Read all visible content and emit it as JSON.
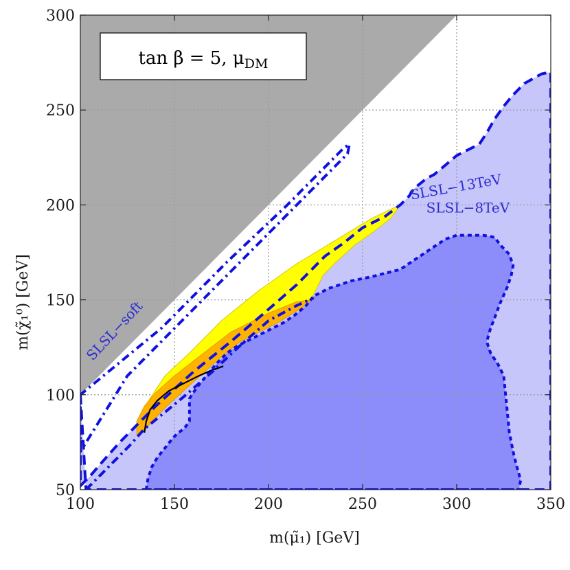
{
  "chart_data": {
    "type": "area",
    "title": "tan β = 5,  μ_DM",
    "title_parts": {
      "main": "tan β = 5,  μ",
      "sub": "DM"
    },
    "xlabel": "m(μ̃₁)  [GeV]",
    "ylabel": "m(χ̃₁⁰)  [GeV]",
    "xlim": [
      100,
      350
    ],
    "ylim": [
      50,
      300
    ],
    "xticks": [
      100,
      150,
      200,
      250,
      300,
      350
    ],
    "yticks": [
      50,
      100,
      150,
      200,
      250,
      300
    ],
    "grid": true,
    "colors": {
      "excluded_gray": "#aaaaaa",
      "sl13_fill": "#c6c6fa",
      "sl8_fill": "#8c8cfb",
      "contour": "#1010e0",
      "yellow": "#ffff00",
      "orange": "#ffb300",
      "black_line": "#000000"
    },
    "regions": [
      {
        "label": "",
        "kind": "kinematically-forbidden",
        "points": [
          [
            100,
            100
          ],
          [
            100,
            300
          ],
          [
            300,
            300
          ]
        ]
      },
      {
        "label": "SLSL−13TeV",
        "kind": "fill-dashed",
        "label_at": [
          300,
          207
        ],
        "label_rotate": -10,
        "points": [
          [
            100,
            100
          ],
          [
            103,
            50
          ],
          [
            350,
            50
          ],
          [
            350,
            270
          ],
          [
            345,
            269
          ],
          [
            336,
            264
          ],
          [
            330,
            258
          ],
          [
            325,
            252
          ],
          [
            320,
            245
          ],
          [
            316,
            238
          ],
          [
            312,
            232
          ],
          [
            306,
            229
          ],
          [
            300,
            226
          ],
          [
            294,
            221
          ],
          [
            288,
            216
          ],
          [
            284,
            214
          ],
          [
            279,
            210
          ],
          [
            276,
            207
          ],
          [
            275,
            205
          ],
          [
            272,
            202
          ],
          [
            270,
            200
          ],
          [
            262,
            194
          ],
          [
            250,
            188
          ],
          [
            240,
            180
          ],
          [
            230,
            173
          ],
          [
            222,
            165
          ],
          [
            215,
            158
          ],
          [
            200,
            145
          ],
          [
            180,
            128
          ],
          [
            160,
            112
          ],
          [
            140,
            94
          ],
          [
            130,
            84
          ],
          [
            121,
            75
          ],
          [
            112,
            65
          ],
          [
            105,
            57
          ],
          [
            100,
            52
          ]
        ]
      },
      {
        "label": "SLSL−8TeV",
        "kind": "fill-dotted",
        "label_at": [
          306,
          196
        ],
        "label_rotate": 0,
        "points": [
          [
            135,
            50
          ],
          [
            333,
            50
          ],
          [
            334,
            55
          ],
          [
            332,
            62
          ],
          [
            331,
            66
          ],
          [
            330,
            70
          ],
          [
            328,
            80
          ],
          [
            327,
            90
          ],
          [
            326,
            100
          ],
          [
            325,
            110
          ],
          [
            322,
            116
          ],
          [
            318,
            122
          ],
          [
            316,
            128
          ],
          [
            318,
            135
          ],
          [
            320,
            140
          ],
          [
            323,
            148
          ],
          [
            327,
            157
          ],
          [
            329,
            163
          ],
          [
            330,
            168
          ],
          [
            328,
            174
          ],
          [
            324,
            178
          ],
          [
            320,
            183
          ],
          [
            314,
            184
          ],
          [
            306,
            184
          ],
          [
            300,
            184
          ],
          [
            294,
            182
          ],
          [
            288,
            178
          ],
          [
            282,
            174
          ],
          [
            276,
            170
          ],
          [
            270,
            166
          ],
          [
            262,
            164
          ],
          [
            254,
            162
          ],
          [
            244,
            160
          ],
          [
            232,
            156
          ],
          [
            224,
            152
          ],
          [
            220,
            147
          ],
          [
            214,
            142
          ],
          [
            208,
            138
          ],
          [
            202,
            135
          ],
          [
            196,
            132
          ],
          [
            190,
            129
          ],
          [
            184,
            126
          ],
          [
            178,
            122
          ],
          [
            172,
            116
          ],
          [
            167,
            110
          ],
          [
            162,
            104
          ],
          [
            158,
            98
          ],
          [
            158,
            92
          ],
          [
            158,
            86
          ],
          [
            155,
            82
          ],
          [
            152,
            80
          ],
          [
            149,
            77
          ],
          [
            145,
            72
          ],
          [
            141,
            67
          ],
          [
            138,
            62
          ],
          [
            136,
            56
          ]
        ]
      },
      {
        "label": "SLSL−soft",
        "kind": "dash-dot-contour",
        "label_at": [
          120,
          132
        ],
        "label_rotate": -47,
        "points": [
          [
            100,
            70
          ],
          [
            100,
            100
          ],
          [
            143,
            135
          ],
          [
            178,
            170
          ],
          [
            210,
            200
          ],
          [
            240,
            230
          ],
          [
            243,
            232
          ],
          [
            242,
            227
          ],
          [
            225,
            210
          ],
          [
            195,
            180
          ],
          [
            160,
            145
          ],
          [
            125,
            110
          ],
          [
            105,
            78
          ]
        ]
      },
      {
        "label": "",
        "kind": "yellow-band",
        "points": [
          [
            131,
            87
          ],
          [
            137,
            98
          ],
          [
            145,
            110
          ],
          [
            158,
            122
          ],
          [
            175,
            139
          ],
          [
            195,
            155
          ],
          [
            215,
            169
          ],
          [
            235,
            181
          ],
          [
            255,
            193
          ],
          [
            270,
            200
          ],
          [
            265,
            193
          ],
          [
            256,
            186
          ],
          [
            246,
            179
          ],
          [
            236,
            170
          ],
          [
            229,
            163
          ],
          [
            226,
            157
          ],
          [
            223,
            151
          ],
          [
            217,
            146
          ],
          [
            205,
            138
          ],
          [
            185,
            128
          ],
          [
            165,
            114
          ],
          [
            150,
            104
          ],
          [
            140,
            95
          ]
        ]
      },
      {
        "label": "",
        "kind": "orange-band",
        "points": [
          [
            130,
            79
          ],
          [
            130,
            86
          ],
          [
            134,
            94
          ],
          [
            140,
            101
          ],
          [
            150,
            110
          ],
          [
            163,
            120
          ],
          [
            180,
            133
          ],
          [
            200,
            143
          ],
          [
            215,
            149
          ],
          [
            223,
            150
          ],
          [
            218,
            146
          ],
          [
            205,
            138
          ],
          [
            195,
            133
          ],
          [
            185,
            128
          ],
          [
            175,
            120
          ],
          [
            166,
            112
          ],
          [
            157,
            104
          ],
          [
            146,
            94
          ],
          [
            138,
            86
          ],
          [
            133,
            80
          ]
        ]
      }
    ],
    "lines": [
      {
        "label": "",
        "kind": "black-line",
        "points": [
          [
            134,
            80
          ],
          [
            135,
            86
          ],
          [
            137,
            92
          ],
          [
            141,
            97
          ],
          [
            147,
            102
          ],
          [
            155,
            106
          ],
          [
            163,
            110
          ],
          [
            170,
            113
          ],
          [
            176,
            115
          ]
        ]
      },
      {
        "label": "",
        "kind": "dash-dot-contour",
        "points": [
          [
            103,
            50
          ],
          [
            110,
            57
          ],
          [
            118,
            65
          ],
          [
            126,
            73
          ],
          [
            134,
            82
          ],
          [
            144,
            90
          ],
          [
            155,
            99
          ],
          [
            170,
            112
          ],
          [
            185,
            126
          ],
          [
            200,
            139
          ],
          [
            215,
            147
          ],
          [
            224,
            151
          ]
        ]
      }
    ]
  }
}
